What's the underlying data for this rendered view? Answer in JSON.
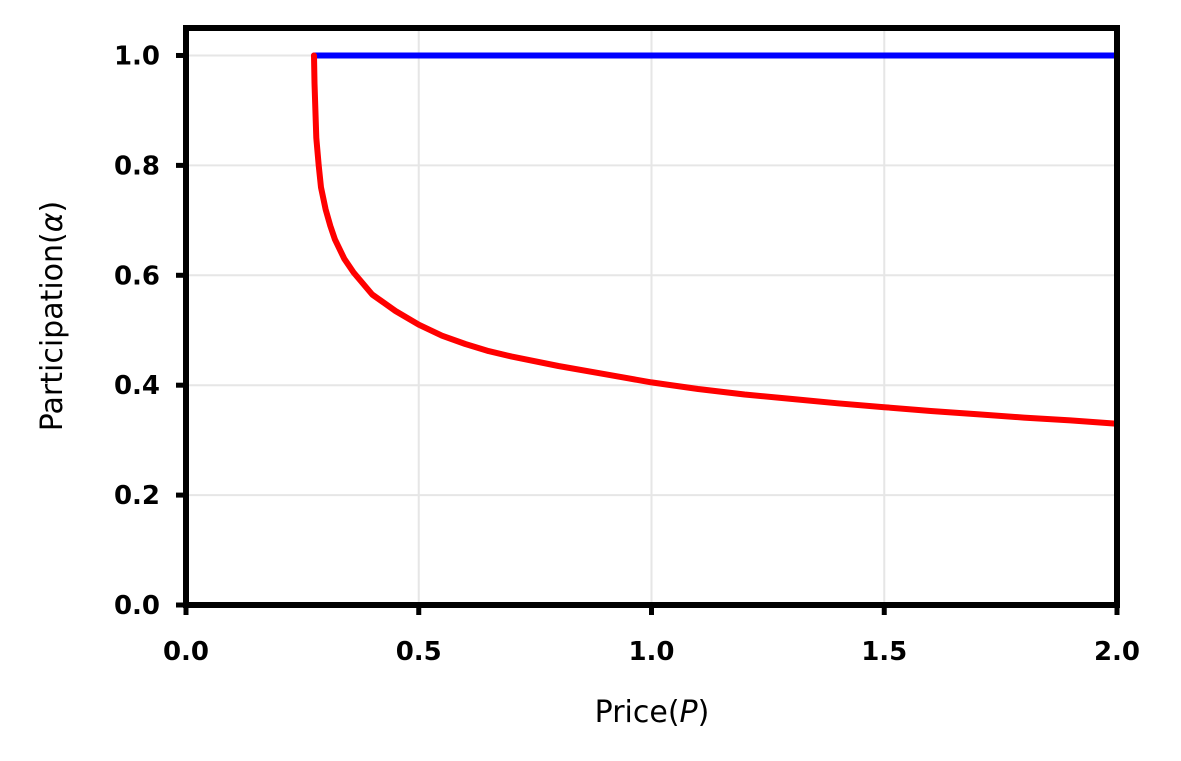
{
  "chart_data": {
    "type": "line",
    "title": "",
    "xlabel": {
      "prefix": "Price(",
      "var": "P",
      "suffix": ")"
    },
    "ylabel": {
      "prefix": "Participation(",
      "var": "α",
      "suffix": ")"
    },
    "xlim": [
      0,
      2
    ],
    "ylim": [
      0,
      1.05
    ],
    "xticks": [
      0.0,
      0.5,
      1.0,
      1.5,
      2.0
    ],
    "xtick_labels": [
      "0.0",
      "0.5",
      "1.0",
      "1.5",
      "2.0"
    ],
    "yticks": [
      0.0,
      0.2,
      0.4,
      0.6,
      0.8,
      1.0
    ],
    "ytick_labels": [
      "0.0",
      "0.2",
      "0.4",
      "0.6",
      "0.8",
      "1.0"
    ],
    "grid": true,
    "legend": "none",
    "series": [
      {
        "color": "#0000ff",
        "x": [
          0.275,
          2.0
        ],
        "y": [
          1.0,
          1.0
        ]
      },
      {
        "color": "#ff0000",
        "x": [
          0.275,
          0.276,
          0.28,
          0.285,
          0.29,
          0.3,
          0.31,
          0.32,
          0.34,
          0.36,
          0.38,
          0.4,
          0.45,
          0.5,
          0.55,
          0.6,
          0.65,
          0.7,
          0.8,
          0.9,
          1.0,
          1.1,
          1.2,
          1.3,
          1.4,
          1.5,
          1.6,
          1.7,
          1.8,
          1.9,
          2.0
        ],
        "y": [
          1.0,
          0.95,
          0.85,
          0.8,
          0.76,
          0.72,
          0.69,
          0.665,
          0.63,
          0.605,
          0.585,
          0.565,
          0.535,
          0.51,
          0.49,
          0.475,
          0.462,
          0.452,
          0.435,
          0.42,
          0.405,
          0.393,
          0.383,
          0.375,
          0.367,
          0.36,
          0.353,
          0.347,
          0.341,
          0.336,
          0.33
        ]
      }
    ]
  }
}
